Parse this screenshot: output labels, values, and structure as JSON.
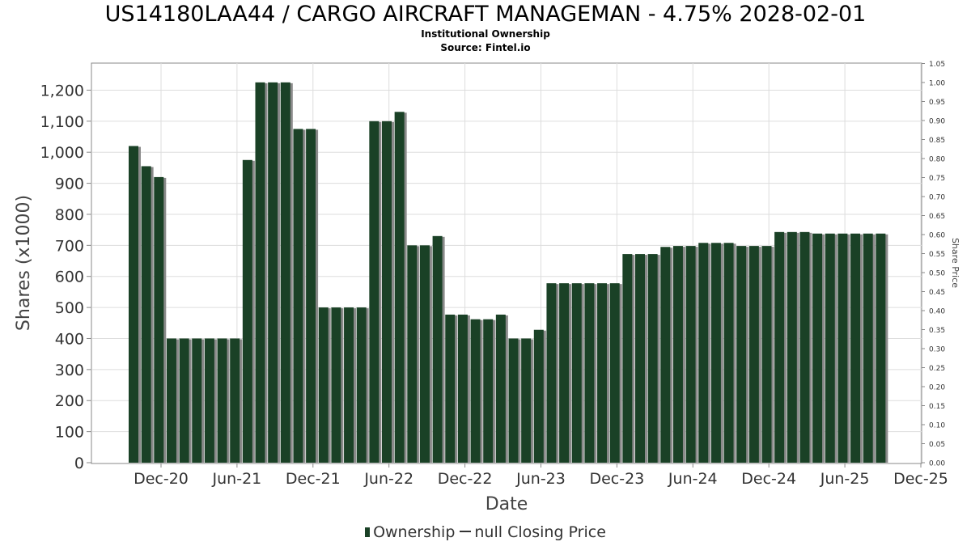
{
  "title": "US14180LAA44 / CARGO AIRCRAFT MANAGEMAN - 4.75% 2028-02-01",
  "subtitle_1": "Institutional Ownership",
  "subtitle_2": "Source: Fintel.io",
  "legend": {
    "ownership_label": "Ownership",
    "price_label": "null Closing Price"
  },
  "colors": {
    "bar": "#1a4126",
    "bar_shadow": "#8a8a8a",
    "grid": "#dddddd",
    "axis": "#888888"
  },
  "chart_data": {
    "type": "bar",
    "xlabel": "Date",
    "ylabel": "Shares (x1000)",
    "y2label": "Share Price",
    "ylim": [
      0,
      1280
    ],
    "y2lim": [
      0,
      1.05
    ],
    "yticks": [
      0,
      100,
      200,
      300,
      400,
      500,
      600,
      700,
      800,
      900,
      1000,
      1100,
      1200
    ],
    "ytick_labels": [
      "0",
      "100",
      "200",
      "300",
      "400",
      "500",
      "600",
      "700",
      "800",
      "900",
      "1,000",
      "1,100",
      "1,200"
    ],
    "y2ticks": [
      0.0,
      0.05,
      0.1,
      0.15,
      0.2,
      0.25,
      0.3,
      0.35,
      0.4,
      0.45,
      0.5,
      0.55,
      0.6,
      0.65,
      0.7,
      0.75,
      0.8,
      0.85,
      0.9,
      0.95,
      1.0,
      1.05
    ],
    "y2tick_labels": [
      "0.00",
      "0.05",
      "0.10",
      "0.15",
      "0.20",
      "0.25",
      "0.30",
      "0.35",
      "0.40",
      "0.45",
      "0.50",
      "0.55",
      "0.60",
      "0.65",
      "0.70",
      "0.75",
      "0.80",
      "0.85",
      "0.90",
      "0.95",
      "1.00",
      "1.05"
    ],
    "xtick_labels": [
      "Dec-20",
      "Jun-21",
      "Dec-21",
      "Jun-22",
      "Dec-22",
      "Jun-23",
      "Dec-23",
      "Jun-24",
      "Dec-24",
      "Jun-25",
      "Dec-25"
    ],
    "grid": true,
    "legend_position": "bottom",
    "series": [
      {
        "name": "Ownership",
        "values": [
          1020,
          955,
          920,
          400,
          400,
          400,
          400,
          400,
          400,
          975,
          1225,
          1225,
          1225,
          1075,
          1075,
          500,
          500,
          500,
          500,
          1100,
          1100,
          1130,
          700,
          700,
          730,
          477,
          477,
          462,
          462,
          477,
          400,
          400,
          428,
          578,
          578,
          578,
          578,
          578,
          578,
          672,
          672,
          672,
          695,
          698,
          698,
          708,
          708,
          708,
          698,
          698,
          698,
          743,
          743,
          743,
          738,
          738,
          738,
          738,
          738,
          738
        ]
      }
    ]
  }
}
